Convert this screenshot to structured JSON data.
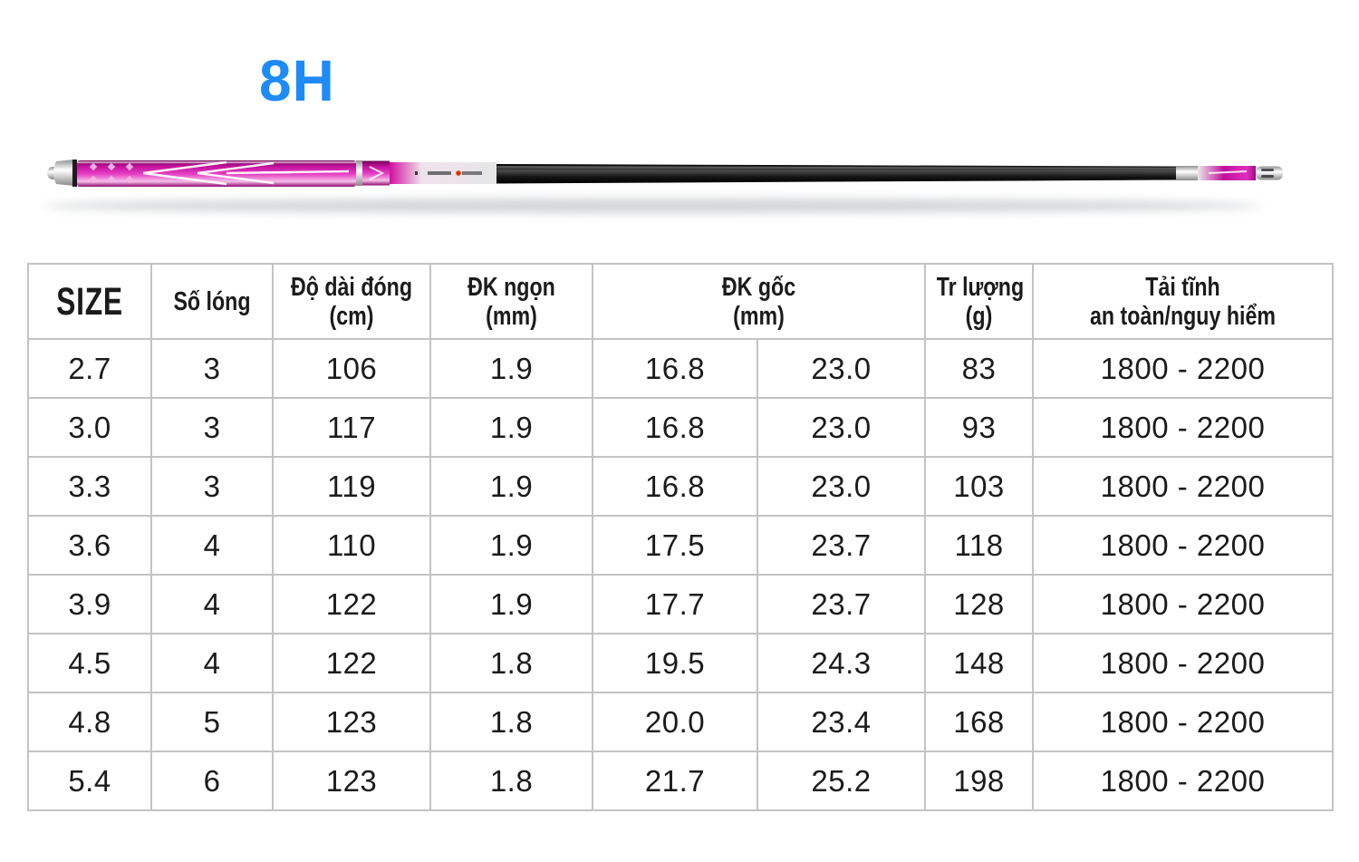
{
  "title": {
    "label": "8H"
  },
  "colors": {
    "accent_blue": "#1E8BF7",
    "rod_magenta": "#C2109B",
    "rod_black": "#141414",
    "rod_silver": "#d9d9d9",
    "table_border": "#c3c3c3"
  },
  "rod_image": {
    "alt": "telescopic fishing rod with magenta handle, silver trim and black carbon blank"
  },
  "chart_data": {
    "type": "table",
    "title": "8H",
    "columns": [
      {
        "label": "SIZE",
        "unit": ""
      },
      {
        "label": "Số lóng",
        "unit": ""
      },
      {
        "label": "Độ dài đóng",
        "unit": "(cm)"
      },
      {
        "label": "ĐK ngọn",
        "unit": "(mm)"
      },
      {
        "label": "ĐK gốc",
        "unit": "(mm)",
        "colspan": 2
      },
      {
        "label": "Tr lượng",
        "unit": "(g)"
      },
      {
        "label": "Tải tĩnh",
        "unit": "an toàn/nguy hiểm"
      }
    ],
    "rows": [
      [
        "2.7",
        "3",
        "106",
        "1.9",
        "16.8",
        "23.0",
        "83",
        "1800 - 2200"
      ],
      [
        "3.0",
        "3",
        "117",
        "1.9",
        "16.8",
        "23.0",
        "93",
        "1800 - 2200"
      ],
      [
        "3.3",
        "3",
        "119",
        "1.9",
        "16.8",
        "23.0",
        "103",
        "1800 - 2200"
      ],
      [
        "3.6",
        "4",
        "110",
        "1.9",
        "17.5",
        "23.7",
        "118",
        "1800 - 2200"
      ],
      [
        "3.9",
        "4",
        "122",
        "1.9",
        "17.7",
        "23.7",
        "128",
        "1800 - 2200"
      ],
      [
        "4.5",
        "4",
        "122",
        "1.8",
        "19.5",
        "24.3",
        "148",
        "1800 - 2200"
      ],
      [
        "4.8",
        "5",
        "123",
        "1.8",
        "20.0",
        "23.4",
        "168",
        "1800 - 2200"
      ],
      [
        "5.4",
        "6",
        "123",
        "1.8",
        "21.7",
        "25.2",
        "198",
        "1800 - 2200"
      ]
    ]
  }
}
